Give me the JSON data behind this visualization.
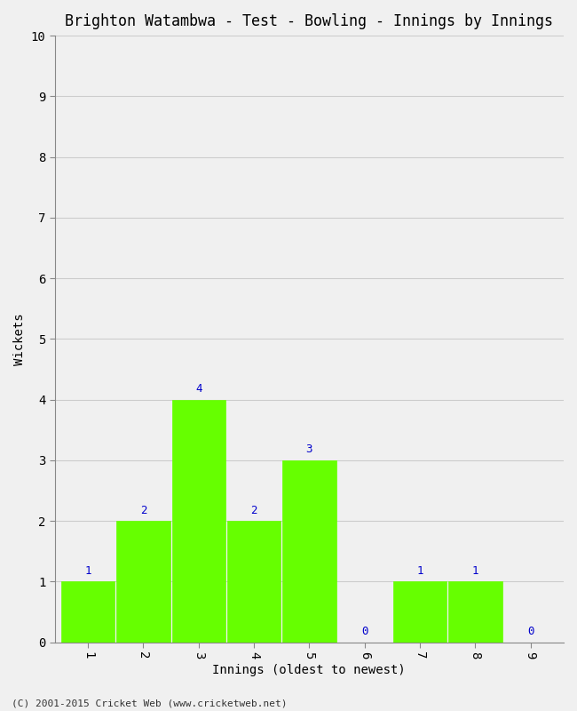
{
  "title": "Brighton Watambwa - Test - Bowling - Innings by Innings",
  "xlabel": "Innings (oldest to newest)",
  "ylabel": "Wickets",
  "categories": [
    1,
    2,
    3,
    4,
    5,
    6,
    7,
    8,
    9
  ],
  "values": [
    1,
    2,
    4,
    2,
    3,
    0,
    1,
    1,
    0
  ],
  "bar_color": "#66ff00",
  "bar_edge_color": "#66ff00",
  "label_color": "#0000cc",
  "ylim": [
    0,
    10
  ],
  "yticks": [
    0,
    1,
    2,
    3,
    4,
    5,
    6,
    7,
    8,
    9,
    10
  ],
  "xticks": [
    1,
    2,
    3,
    4,
    5,
    6,
    7,
    8,
    9
  ],
  "background_color": "#f0f0f0",
  "grid_color": "#cccccc",
  "footer": "(C) 2001-2015 Cricket Web (www.cricketweb.net)",
  "title_fontsize": 12,
  "axis_label_fontsize": 10,
  "tick_fontsize": 10,
  "annotation_fontsize": 9,
  "bar_width": 0.97
}
